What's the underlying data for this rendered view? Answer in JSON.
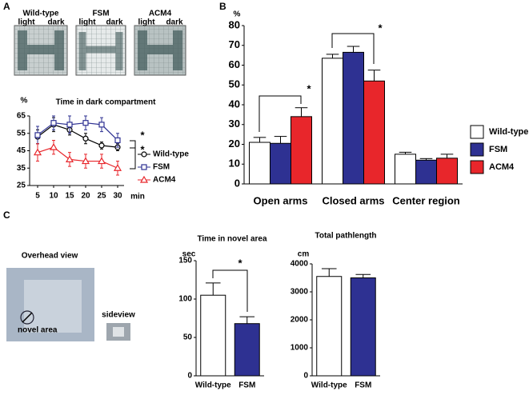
{
  "panel_labels": [
    "A",
    "B",
    "C"
  ],
  "track_images": [
    {
      "label": "Wild-type",
      "light": "light",
      "dark": "dark"
    },
    {
      "label": "FSM",
      "light": "light",
      "dark": "dark"
    },
    {
      "label": "ACM4",
      "light": "light",
      "dark": "dark"
    }
  ],
  "photo": {
    "title": "Overhead view",
    "annotation": "novel area",
    "sideview": "sideview"
  },
  "chart_data": [
    {
      "type": "line",
      "title": "Time in dark compartment",
      "ylabel": "%",
      "xlabel": "min",
      "x": [
        5,
        10,
        15,
        20,
        25,
        30
      ],
      "xlim": [
        2.5,
        32
      ],
      "xticks": [
        5,
        10,
        15,
        20,
        25,
        30
      ],
      "ylim": [
        25,
        65
      ],
      "yticks": [
        25,
        35,
        45,
        55,
        65
      ],
      "series": [
        {
          "name": "Wild-type",
          "color": "#000000",
          "marker": "circle",
          "values": [
            53,
            60,
            57,
            52,
            48,
            47
          ],
          "errors": [
            4,
            4,
            3,
            3,
            2,
            2
          ]
        },
        {
          "name": "FSM",
          "color": "#2e3192",
          "marker": "square",
          "values": [
            54,
            61,
            60,
            61,
            60,
            51
          ],
          "errors": [
            5,
            4,
            5,
            4,
            4,
            4
          ]
        },
        {
          "name": "ACM4",
          "color": "#e8262b",
          "marker": "triangle",
          "values": [
            44,
            47,
            40,
            39,
            39,
            35
          ],
          "errors": [
            5,
            4,
            4,
            4,
            4,
            4
          ]
        }
      ],
      "annotations": [
        "*",
        "*"
      ]
    },
    {
      "type": "bar",
      "ylabel": "%",
      "categories": [
        "Open arms",
        "Closed arms",
        "Center region"
      ],
      "ylim": [
        0,
        80
      ],
      "yticks": [
        0,
        10,
        20,
        30,
        40,
        50,
        60,
        70,
        80
      ],
      "series": [
        {
          "name": "Wild-type",
          "color": "#ffffff",
          "values": [
            21,
            63.5,
            15
          ],
          "errors": [
            2.5,
            2,
            1
          ]
        },
        {
          "name": "FSM",
          "color": "#2e3192",
          "values": [
            20.5,
            66.5,
            12
          ],
          "errors": [
            3.5,
            3,
            0.8
          ]
        },
        {
          "name": "ACM4",
          "color": "#e8262b",
          "values": [
            34,
            52,
            13
          ],
          "errors": [
            4.5,
            5.5,
            2
          ]
        }
      ],
      "annotations": [
        "*",
        "*"
      ]
    },
    {
      "type": "bar",
      "title": "Time in novel area",
      "ylabel": "sec",
      "categories": [
        "Wild-type",
        "FSM"
      ],
      "ylim": [
        0,
        150
      ],
      "yticks": [
        0,
        50,
        100,
        150
      ],
      "values": [
        105,
        68
      ],
      "errors": [
        16,
        9
      ],
      "colors": [
        "#ffffff",
        "#2e3192"
      ],
      "annotations": [
        "*"
      ]
    },
    {
      "type": "bar",
      "title": "Total pathlength",
      "ylabel": "cm",
      "categories": [
        "Wild-type",
        "FSM"
      ],
      "ylim": [
        0,
        4000
      ],
      "yticks": [
        0,
        1000,
        2000,
        3000,
        4000
      ],
      "values": [
        3550,
        3500
      ],
      "errors": [
        280,
        120
      ],
      "colors": [
        "#ffffff",
        "#2e3192"
      ]
    }
  ]
}
